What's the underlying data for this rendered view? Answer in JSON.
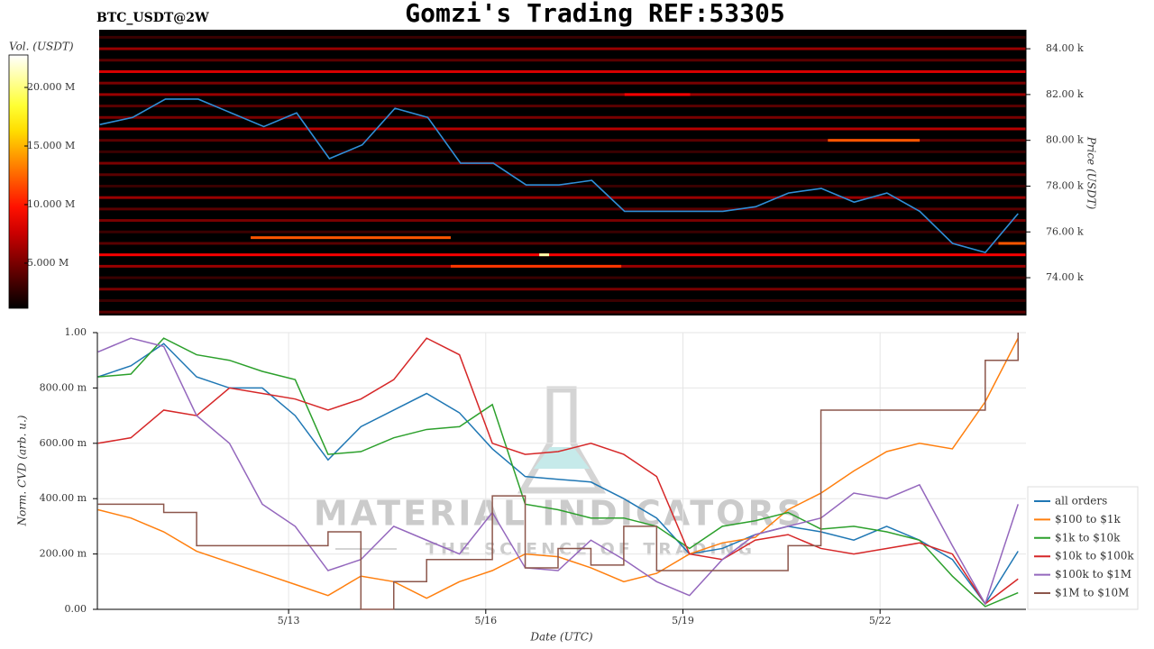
{
  "chart_data": [
    {
      "type": "heatmap",
      "title": "Gomzi's Trading REF:53305",
      "subtitle": "BTC_USDT@2W",
      "ylabel": "Price (USDT)",
      "xlim": [
        10.09,
        24.22
      ],
      "ylim": [
        72350,
        84830
      ],
      "yticks": [
        {
          "value": 74000,
          "label": "74.00 k"
        },
        {
          "value": 76000,
          "label": "76.00 k"
        },
        {
          "value": 78000,
          "label": "78.00 k"
        },
        {
          "value": 80000,
          "label": "80.00 k"
        },
        {
          "value": 82000,
          "label": "82.00 k"
        },
        {
          "value": 84000,
          "label": "84.00 k"
        }
      ],
      "colormap": "hot",
      "colorbar": {
        "label": "Vol. (USDT)",
        "lim": [
          1150000,
          22770000
        ],
        "ticks": [
          {
            "value": 5000000,
            "label": "5.000 M"
          },
          {
            "value": 10000000,
            "label": "10.000 M"
          },
          {
            "value": 15000000,
            "label": "15.000 M"
          },
          {
            "value": 20000000,
            "label": "20.000 M"
          }
        ]
      },
      "levels": {
        "prices": [
          72500,
          73000,
          73500,
          74000,
          74500,
          75000,
          75500,
          76000,
          76500,
          77000,
          77500,
          78000,
          78500,
          79000,
          79500,
          80000,
          80500,
          81000,
          81500,
          82000,
          82500,
          83000,
          83500,
          84000,
          84500
        ],
        "volumes": [
          4000000,
          3000000,
          5000000,
          3000000,
          6000000,
          9000000,
          4000000,
          3000000,
          5000000,
          4000000,
          6000000,
          3000000,
          4000000,
          5000000,
          3000000,
          4000000,
          7000000,
          5000000,
          4000000,
          6000000,
          5000000,
          8000000,
          4000000,
          6000000,
          3000000
        ]
      },
      "walls": [
        {
          "price": 75750,
          "start": 12.4,
          "end": 15.45,
          "volume": 12000000
        },
        {
          "price": 74500,
          "start": 15.45,
          "end": 18.05,
          "volume": 11000000
        },
        {
          "price": 75000,
          "start": 16.8,
          "end": 16.95,
          "volume": 21000000
        },
        {
          "price": 80000,
          "start": 21.2,
          "end": 22.6,
          "volume": 12000000
        },
        {
          "price": 82000,
          "start": 18.1,
          "end": 19.1,
          "volume": 9000000
        },
        {
          "price": 75500,
          "start": 23.8,
          "end": 24.22,
          "volume": 12000000
        }
      ],
      "x": [
        10.1,
        10.6,
        11.1,
        11.6,
        12.1,
        12.6,
        13.1,
        13.6,
        14.1,
        14.6,
        15.1,
        15.6,
        16.1,
        16.6,
        17.1,
        17.6,
        18.1,
        18.6,
        19.1,
        19.6,
        20.1,
        20.6,
        21.1,
        21.6,
        22.1,
        22.6,
        23.1,
        23.6,
        24.1
      ],
      "series": [
        {
          "color": "#2f8fd8",
          "values": [
            80690,
            81000,
            81800,
            81800,
            81200,
            80600,
            81200,
            79200,
            79800,
            81400,
            81000,
            79000,
            79000,
            78050,
            78050,
            78250,
            76900,
            76900,
            76900,
            76900,
            77100,
            77700,
            77900,
            77300,
            77700,
            76900,
            75500,
            75100,
            76800
          ]
        }
      ]
    },
    {
      "type": "line",
      "xlabel": "Date (UTC)",
      "ylabel": "Norm. CVD (arb. u.)",
      "xlim": [
        10.09,
        24.22
      ],
      "xticks": [
        {
          "value": 13,
          "label": "5/13"
        },
        {
          "value": 16,
          "label": "5/16"
        },
        {
          "value": 19,
          "label": "5/19"
        },
        {
          "value": 22,
          "label": "5/22"
        }
      ],
      "ylim": [
        0,
        1
      ],
      "yticks": [
        {
          "value": 0,
          "label": "0.00"
        },
        {
          "value": 0.2,
          "label": "200.00 m"
        },
        {
          "value": 0.4,
          "label": "400.00 m"
        },
        {
          "value": 0.6,
          "label": "600.00 m"
        },
        {
          "value": 0.8,
          "label": "800.00 m"
        },
        {
          "value": 1,
          "label": "1.00"
        }
      ],
      "grid": true,
      "legend": "lower right",
      "watermark": [
        "MATERIAL INDICATORS",
        "THE SCIENCE OF TRADING"
      ],
      "x": [
        10.1,
        10.6,
        11.1,
        11.6,
        12.1,
        12.6,
        13.1,
        13.6,
        14.1,
        14.6,
        15.1,
        15.6,
        16.1,
        16.6,
        17.1,
        17.6,
        18.1,
        18.6,
        19.1,
        19.6,
        20.1,
        20.6,
        21.1,
        21.6,
        22.1,
        22.6,
        23.1,
        23.6,
        24.1
      ],
      "series": [
        {
          "name": "all orders",
          "color": "#1f77b4",
          "values": [
            0.84,
            0.88,
            0.96,
            0.84,
            0.8,
            0.8,
            0.7,
            0.54,
            0.66,
            0.72,
            0.78,
            0.71,
            0.58,
            0.48,
            0.47,
            0.46,
            0.4,
            0.33,
            0.2,
            0.22,
            0.27,
            0.3,
            0.28,
            0.25,
            0.3,
            0.25,
            0.18,
            0.02,
            0.21
          ]
        },
        {
          "name": "$100 to $1k",
          "color": "#ff7f0e",
          "values": [
            0.36,
            0.33,
            0.28,
            0.21,
            0.17,
            0.13,
            0.09,
            0.05,
            0.12,
            0.1,
            0.04,
            0.1,
            0.14,
            0.2,
            0.19,
            0.15,
            0.1,
            0.13,
            0.2,
            0.24,
            0.26,
            0.36,
            0.42,
            0.5,
            0.57,
            0.6,
            0.58,
            0.75,
            0.98
          ]
        },
        {
          "name": "$1k to $10k",
          "color": "#2ca02c",
          "values": [
            0.84,
            0.85,
            0.98,
            0.92,
            0.9,
            0.86,
            0.83,
            0.56,
            0.57,
            0.62,
            0.65,
            0.66,
            0.74,
            0.38,
            0.36,
            0.33,
            0.33,
            0.3,
            0.22,
            0.3,
            0.32,
            0.35,
            0.29,
            0.3,
            0.28,
            0.25,
            0.12,
            0.01,
            0.06
          ]
        },
        {
          "name": "$10k to $100k",
          "color": "#d62728",
          "values": [
            0.6,
            0.62,
            0.72,
            0.7,
            0.8,
            0.78,
            0.76,
            0.72,
            0.76,
            0.83,
            0.98,
            0.92,
            0.6,
            0.56,
            0.57,
            0.6,
            0.56,
            0.48,
            0.2,
            0.18,
            0.25,
            0.27,
            0.22,
            0.2,
            0.22,
            0.24,
            0.2,
            0.02,
            0.11
          ]
        },
        {
          "name": "$100k to $1M",
          "color": "#9467bd",
          "values": [
            0.93,
            0.98,
            0.95,
            0.7,
            0.6,
            0.38,
            0.3,
            0.14,
            0.18,
            0.3,
            0.25,
            0.2,
            0.35,
            0.15,
            0.14,
            0.25,
            0.18,
            0.1,
            0.05,
            0.18,
            0.27,
            0.3,
            0.33,
            0.42,
            0.4,
            0.45,
            0.23,
            0.02,
            0.38
          ]
        },
        {
          "name": "$1M to $10M",
          "color": "#8c564b",
          "step": true,
          "values": [
            0.38,
            0.38,
            0.35,
            0.23,
            0.23,
            0.23,
            0.23,
            0.28,
            0,
            0.1,
            0.18,
            0.18,
            0.41,
            0.15,
            0.22,
            0.16,
            0.3,
            0.14,
            0.14,
            0.14,
            0.14,
            0.23,
            0.72,
            0.72,
            0.72,
            0.72,
            0.72,
            0.9,
            1
          ]
        }
      ]
    }
  ]
}
